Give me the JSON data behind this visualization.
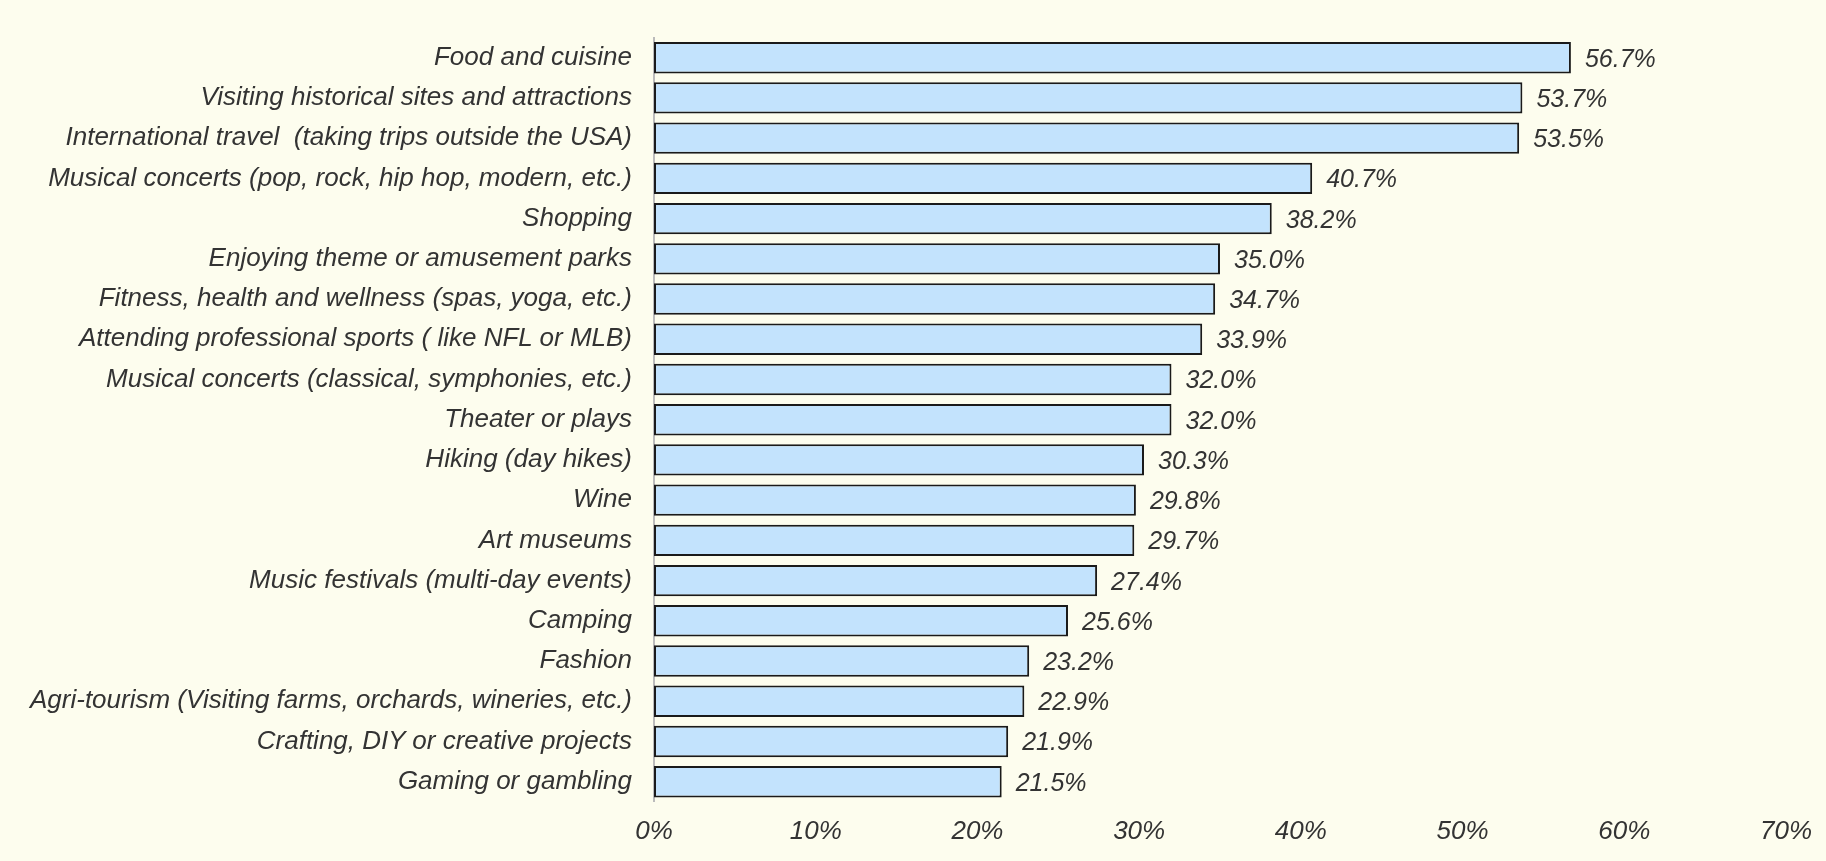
{
  "chart_data": {
    "type": "bar",
    "orientation": "horizontal",
    "categories": [
      "Food and cuisine",
      "Visiting historical sites and attractions",
      "International travel  (taking trips outside the USA)",
      "Musical concerts (pop, rock, hip hop, modern, etc.)",
      "Shopping",
      "Enjoying theme or amusement parks",
      "Fitness, health and wellness (spas, yoga, etc.)",
      "Attending professional sports ( like NFL or MLB)",
      "Musical concerts (classical, symphonies, etc.)",
      "Theater or plays",
      "Hiking (day hikes)",
      "Wine",
      "Art museums",
      "Music festivals (multi-day events)",
      "Camping",
      "Fashion",
      "Agri-tourism (Visiting farms, orchards, wineries, etc.)",
      "Crafting, DIY or creative projects",
      "Gaming or gambling"
    ],
    "values": [
      56.7,
      53.7,
      53.5,
      40.7,
      38.2,
      35.0,
      34.7,
      33.9,
      32.0,
      32.0,
      30.3,
      29.8,
      29.7,
      27.4,
      25.6,
      23.2,
      22.9,
      21.9,
      21.5
    ],
    "value_labels": [
      "56.7%",
      "53.7%",
      "53.5%",
      "40.7%",
      "38.2%",
      "35.0%",
      "34.7%",
      "33.9%",
      "32.0%",
      "32.0%",
      "30.3%",
      "29.8%",
      "29.7%",
      "27.4%",
      "25.6%",
      "23.2%",
      "22.9%",
      "21.9%",
      "21.5%"
    ],
    "color": "#c3e3fd",
    "xlim": [
      0,
      70
    ],
    "xticks": [
      {
        "value": 0,
        "label": "0%"
      },
      {
        "value": 10,
        "label": "10%"
      },
      {
        "value": 20,
        "label": "20%"
      },
      {
        "value": 30,
        "label": "30%"
      },
      {
        "value": 40,
        "label": "40%"
      },
      {
        "value": 50,
        "label": "50%"
      },
      {
        "value": 60,
        "label": "60%"
      },
      {
        "value": 70,
        "label": "70%"
      }
    ],
    "grid": false,
    "legend": false
  }
}
